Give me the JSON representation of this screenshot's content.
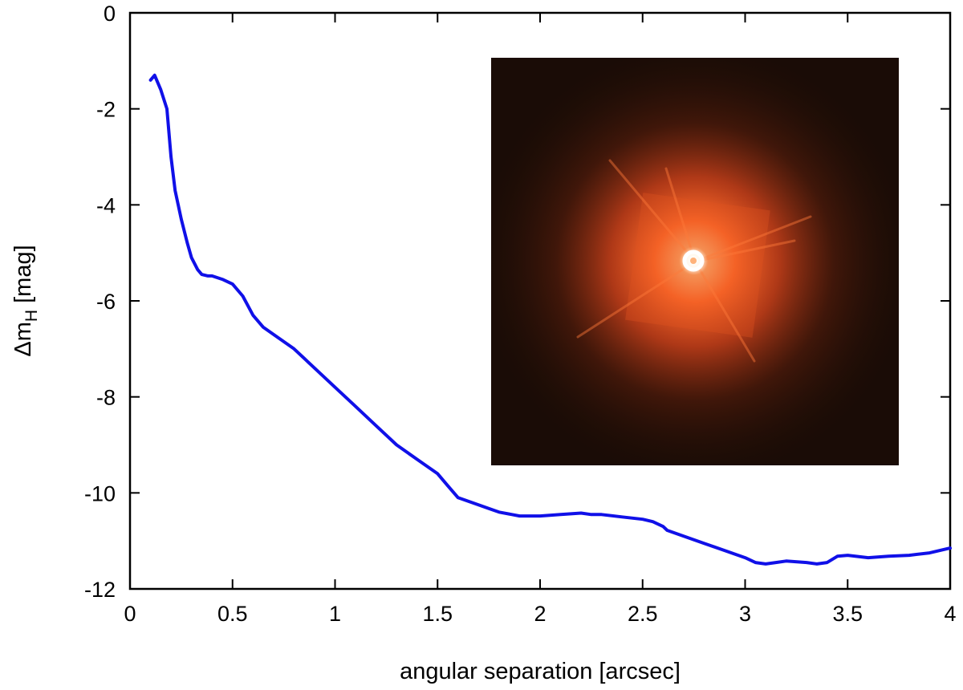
{
  "chart_data": {
    "type": "line",
    "title": "",
    "xlabel": "angular separation [arcsec]",
    "ylabel": {
      "prefix": "Δm",
      "subscript": "H",
      "suffix": " [mag]"
    },
    "xlim": [
      0,
      4
    ],
    "ylim": [
      -12,
      0
    ],
    "xticks": [
      0,
      0.5,
      1,
      1.5,
      2,
      2.5,
      3,
      3.5,
      4
    ],
    "xtick_labels": [
      "0",
      "0.5",
      "1",
      "1.5",
      "2",
      "2.5",
      "3",
      "3.5",
      "4"
    ],
    "yticks": [
      0,
      -2,
      -4,
      -6,
      -8,
      -10,
      -12
    ],
    "ytick_labels": [
      "0",
      "-2",
      "-4",
      "-6",
      "-8",
      "-10",
      "-12"
    ],
    "grid": false,
    "legend": "none",
    "series": [
      {
        "color": "#1010e8",
        "x": [
          0.1,
          0.12,
          0.15,
          0.18,
          0.2,
          0.22,
          0.25,
          0.28,
          0.3,
          0.33,
          0.35,
          0.38,
          0.4,
          0.45,
          0.5,
          0.55,
          0.6,
          0.65,
          0.7,
          0.8,
          0.9,
          1.0,
          1.1,
          1.2,
          1.3,
          1.4,
          1.5,
          1.55,
          1.6,
          1.7,
          1.8,
          1.9,
          2.0,
          2.1,
          2.2,
          2.25,
          2.3,
          2.4,
          2.5,
          2.55,
          2.6,
          2.62,
          2.7,
          2.8,
          2.9,
          3.0,
          3.05,
          3.1,
          3.15,
          3.2,
          3.3,
          3.35,
          3.4,
          3.45,
          3.5,
          3.6,
          3.7,
          3.8,
          3.9,
          4.0
        ],
        "y": [
          -1.4,
          -1.3,
          -1.6,
          -2.0,
          -3.0,
          -3.7,
          -4.3,
          -4.8,
          -5.1,
          -5.35,
          -5.45,
          -5.48,
          -5.48,
          -5.55,
          -5.65,
          -5.9,
          -6.3,
          -6.55,
          -6.7,
          -7.0,
          -7.4,
          -7.8,
          -8.2,
          -8.6,
          -9.0,
          -9.3,
          -9.6,
          -9.85,
          -10.1,
          -10.25,
          -10.4,
          -10.48,
          -10.48,
          -10.45,
          -10.42,
          -10.45,
          -10.45,
          -10.5,
          -10.55,
          -10.6,
          -10.7,
          -10.78,
          -10.9,
          -11.05,
          -11.2,
          -11.35,
          -11.45,
          -11.48,
          -11.45,
          -11.42,
          -11.45,
          -11.48,
          -11.45,
          -11.32,
          -11.3,
          -11.35,
          -11.32,
          -11.3,
          -11.25,
          -11.15
        ]
      }
    ],
    "inset": {
      "image": "radial-glow-star-image",
      "background": "#1a0c06",
      "glow_color": "#ff5a1e",
      "core_color": "#ffffff"
    }
  }
}
